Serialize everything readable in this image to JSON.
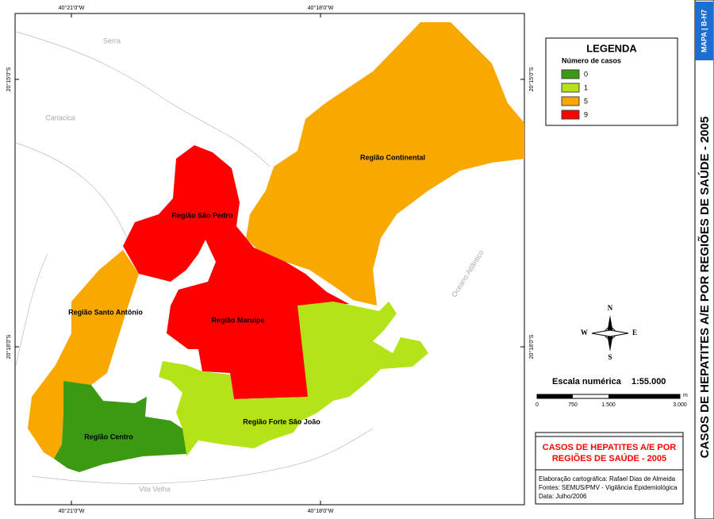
{
  "map": {
    "title": "CASOS DE HEPATITES A/E POR REGIÕES DE SAÚDE - 2005",
    "map_code": "MAPA | B-H7",
    "legend": {
      "title": "LEGENDA",
      "subtitle": "Número de casos",
      "items": [
        {
          "value": 0,
          "color": "#3c9a12"
        },
        {
          "value": 1,
          "color": "#b5e31a"
        },
        {
          "value": 5,
          "color": "#f9a800"
        },
        {
          "value": 9,
          "color": "#ff0000"
        }
      ]
    },
    "regions": [
      {
        "name": "Região Continental",
        "cases": 5
      },
      {
        "name": "Região São Pedro",
        "cases": 9
      },
      {
        "name": "Região Santo Antônio",
        "cases": 5
      },
      {
        "name": "Região Maruípe",
        "cases": 9
      },
      {
        "name": "Região Forte São João",
        "cases": 1
      },
      {
        "name": "Região Centro",
        "cases": 0
      }
    ],
    "places": [
      "Serra",
      "Cariacica",
      "Vila Velha",
      "Oceano Atlântico"
    ],
    "longitude_labels": [
      "40°21'0\"W",
      "40°18'0\"W"
    ],
    "latitude_labels": [
      "20°15'0\"S",
      "20°18'0\"S"
    ],
    "compass": {
      "n": "N",
      "s": "S",
      "e": "E",
      "w": "W"
    },
    "scale": {
      "label": "Escala numérica",
      "ratio": "1:55.000",
      "unit": "m",
      "ticks": [
        "0",
        "750",
        "1.500",
        "3.000"
      ]
    },
    "title_box": [
      "CASOS DE HEPATITES A/E POR",
      "REGIÕES DE SAÚDE - 2005"
    ],
    "credits": [
      "Elaboração cartográfica: Rafael Dias de Almeida",
      "Fontes: SEMUS/PMV - Vigilância Epidemiológica",
      "Data: Julho/2006"
    ]
  }
}
